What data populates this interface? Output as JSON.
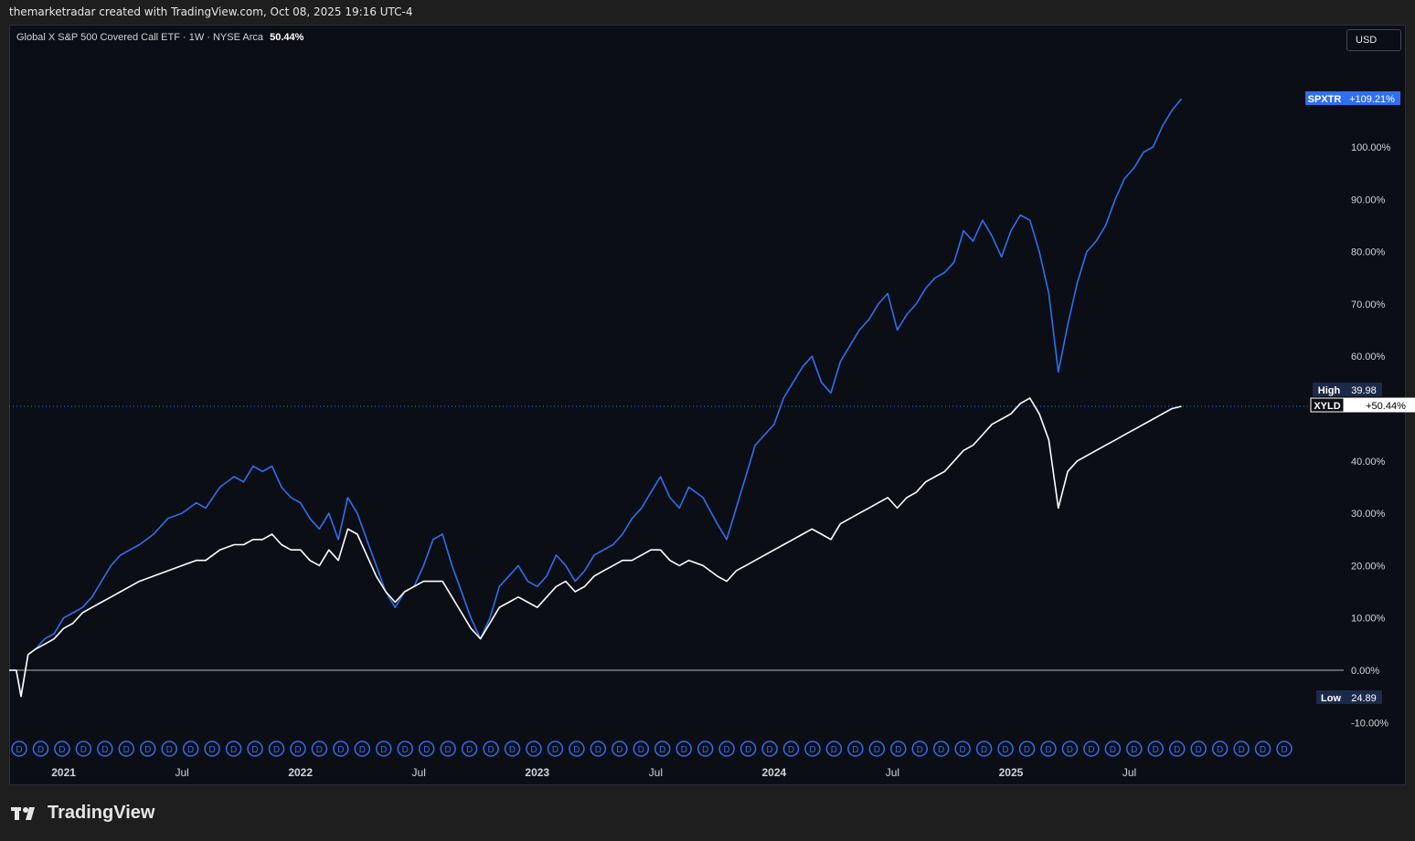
{
  "header": {
    "attribution": "themarketradar created with TradingView.com, Oct 08, 2025 19:16 UTC-4"
  },
  "legend": {
    "symbol_text": "Global X S&P 500 Covered Call ETF · 1W · NYSE Arca",
    "value": "50.44%"
  },
  "currency_button": "USD",
  "brand": {
    "logo_text": "TradingView",
    "icon": "tradingview-logo-icon"
  },
  "colors": {
    "background": "#0c0e15",
    "spxtr": "#2f6ff0",
    "xyld": "#ffffff",
    "axis_text": "#d1d4dc"
  },
  "price_labels": {
    "spxtr": {
      "symbol": "SPXTR",
      "value": "+109.21%"
    },
    "xyld": {
      "symbol": "XYLD",
      "value": "+50.44%"
    },
    "high": {
      "label": "High",
      "value": "39.98"
    },
    "low": {
      "label": "Low",
      "value": "24.89"
    }
  },
  "dividend_marker": "D",
  "chart_data": {
    "type": "line",
    "ylim": [
      -13,
      110
    ],
    "y_ticks": [
      "100.00%",
      "90.00%",
      "80.00%",
      "70.00%",
      "60.00%",
      "40.00%",
      "30.00%",
      "20.00%",
      "10.00%",
      "0.00%",
      "-10.00%"
    ],
    "y_tick_values": [
      100,
      90,
      80,
      70,
      60,
      40,
      30,
      20,
      10,
      0,
      -10
    ],
    "x_ticks": [
      {
        "label": "2021",
        "x": 2021.0
      },
      {
        "label": "Jul",
        "x": 2021.5
      },
      {
        "label": "2022",
        "x": 2022.0
      },
      {
        "label": "Jul",
        "x": 2022.5
      },
      {
        "label": "2023",
        "x": 2023.0
      },
      {
        "label": "Jul",
        "x": 2023.5
      },
      {
        "label": "2024",
        "x": 2024.0
      },
      {
        "label": "Jul",
        "x": 2024.5
      },
      {
        "label": "2025",
        "x": 2025.0
      },
      {
        "label": "Jul",
        "x": 2025.5
      }
    ],
    "xlim": [
      2020.77,
      2026.05
    ],
    "crosshair_y": 50.44,
    "series": [
      {
        "name": "SPXTR",
        "points": [
          [
            2020.77,
            0
          ],
          [
            2020.8,
            0
          ],
          [
            2020.82,
            -5
          ],
          [
            2020.85,
            3
          ],
          [
            2020.88,
            4
          ],
          [
            2020.92,
            6
          ],
          [
            2020.96,
            7
          ],
          [
            2021.0,
            10
          ],
          [
            2021.04,
            11
          ],
          [
            2021.08,
            12
          ],
          [
            2021.12,
            14
          ],
          [
            2021.16,
            17
          ],
          [
            2021.2,
            20
          ],
          [
            2021.24,
            22
          ],
          [
            2021.28,
            23
          ],
          [
            2021.32,
            24
          ],
          [
            2021.38,
            26
          ],
          [
            2021.44,
            29
          ],
          [
            2021.5,
            30
          ],
          [
            2021.56,
            32
          ],
          [
            2021.6,
            31
          ],
          [
            2021.66,
            35
          ],
          [
            2021.72,
            37
          ],
          [
            2021.76,
            36
          ],
          [
            2021.8,
            39
          ],
          [
            2021.84,
            38
          ],
          [
            2021.88,
            39
          ],
          [
            2021.92,
            35
          ],
          [
            2021.96,
            33
          ],
          [
            2022.0,
            32
          ],
          [
            2022.04,
            29
          ],
          [
            2022.08,
            27
          ],
          [
            2022.12,
            30
          ],
          [
            2022.16,
            25
          ],
          [
            2022.2,
            33
          ],
          [
            2022.24,
            30
          ],
          [
            2022.28,
            25
          ],
          [
            2022.32,
            20
          ],
          [
            2022.36,
            15
          ],
          [
            2022.4,
            12
          ],
          [
            2022.44,
            15
          ],
          [
            2022.48,
            16
          ],
          [
            2022.52,
            20
          ],
          [
            2022.56,
            25
          ],
          [
            2022.6,
            26
          ],
          [
            2022.64,
            20
          ],
          [
            2022.68,
            15
          ],
          [
            2022.72,
            10
          ],
          [
            2022.76,
            6
          ],
          [
            2022.8,
            10
          ],
          [
            2022.84,
            16
          ],
          [
            2022.88,
            18
          ],
          [
            2022.92,
            20
          ],
          [
            2022.96,
            17
          ],
          [
            2023.0,
            16
          ],
          [
            2023.04,
            18
          ],
          [
            2023.08,
            22
          ],
          [
            2023.12,
            20
          ],
          [
            2023.16,
            17
          ],
          [
            2023.2,
            19
          ],
          [
            2023.24,
            22
          ],
          [
            2023.28,
            23
          ],
          [
            2023.32,
            24
          ],
          [
            2023.36,
            26
          ],
          [
            2023.4,
            29
          ],
          [
            2023.44,
            31
          ],
          [
            2023.48,
            34
          ],
          [
            2023.52,
            37
          ],
          [
            2023.56,
            33
          ],
          [
            2023.6,
            31
          ],
          [
            2023.64,
            35
          ],
          [
            2023.7,
            33
          ],
          [
            2023.76,
            28
          ],
          [
            2023.8,
            25
          ],
          [
            2023.84,
            31
          ],
          [
            2023.88,
            37
          ],
          [
            2023.92,
            43
          ],
          [
            2023.96,
            45
          ],
          [
            2024.0,
            47
          ],
          [
            2024.04,
            52
          ],
          [
            2024.08,
            55
          ],
          [
            2024.12,
            58
          ],
          [
            2024.16,
            60
          ],
          [
            2024.2,
            55
          ],
          [
            2024.24,
            53
          ],
          [
            2024.28,
            59
          ],
          [
            2024.32,
            62
          ],
          [
            2024.36,
            65
          ],
          [
            2024.4,
            67
          ],
          [
            2024.44,
            70
          ],
          [
            2024.48,
            72
          ],
          [
            2024.52,
            65
          ],
          [
            2024.56,
            68
          ],
          [
            2024.6,
            70
          ],
          [
            2024.64,
            73
          ],
          [
            2024.68,
            75
          ],
          [
            2024.72,
            76
          ],
          [
            2024.76,
            78
          ],
          [
            2024.8,
            84
          ],
          [
            2024.84,
            82
          ],
          [
            2024.88,
            86
          ],
          [
            2024.92,
            83
          ],
          [
            2024.96,
            79
          ],
          [
            2025.0,
            84
          ],
          [
            2025.04,
            87
          ],
          [
            2025.08,
            86
          ],
          [
            2025.12,
            80
          ],
          [
            2025.16,
            72
          ],
          [
            2025.2,
            57
          ],
          [
            2025.24,
            66
          ],
          [
            2025.28,
            74
          ],
          [
            2025.32,
            80
          ],
          [
            2025.36,
            82
          ],
          [
            2025.4,
            85
          ],
          [
            2025.44,
            90
          ],
          [
            2025.48,
            94
          ],
          [
            2025.52,
            96
          ],
          [
            2025.56,
            99
          ],
          [
            2025.6,
            100
          ],
          [
            2025.64,
            104
          ],
          [
            2025.68,
            107
          ],
          [
            2025.72,
            109.21
          ]
        ]
      },
      {
        "name": "XYLD",
        "points": [
          [
            2020.77,
            0
          ],
          [
            2020.8,
            0
          ],
          [
            2020.82,
            -5
          ],
          [
            2020.85,
            3
          ],
          [
            2020.88,
            4
          ],
          [
            2020.92,
            5
          ],
          [
            2020.96,
            6
          ],
          [
            2021.0,
            8
          ],
          [
            2021.04,
            9
          ],
          [
            2021.08,
            11
          ],
          [
            2021.12,
            12
          ],
          [
            2021.16,
            13
          ],
          [
            2021.2,
            14
          ],
          [
            2021.24,
            15
          ],
          [
            2021.28,
            16
          ],
          [
            2021.32,
            17
          ],
          [
            2021.38,
            18
          ],
          [
            2021.44,
            19
          ],
          [
            2021.5,
            20
          ],
          [
            2021.56,
            21
          ],
          [
            2021.6,
            21
          ],
          [
            2021.66,
            23
          ],
          [
            2021.72,
            24
          ],
          [
            2021.76,
            24
          ],
          [
            2021.8,
            25
          ],
          [
            2021.84,
            25
          ],
          [
            2021.88,
            26
          ],
          [
            2021.92,
            24
          ],
          [
            2021.96,
            23
          ],
          [
            2022.0,
            23
          ],
          [
            2022.04,
            21
          ],
          [
            2022.08,
            20
          ],
          [
            2022.12,
            23
          ],
          [
            2022.16,
            21
          ],
          [
            2022.2,
            27
          ],
          [
            2022.24,
            26
          ],
          [
            2022.28,
            22
          ],
          [
            2022.32,
            18
          ],
          [
            2022.36,
            15
          ],
          [
            2022.4,
            13
          ],
          [
            2022.44,
            15
          ],
          [
            2022.48,
            16
          ],
          [
            2022.52,
            17
          ],
          [
            2022.56,
            17
          ],
          [
            2022.6,
            17
          ],
          [
            2022.64,
            14
          ],
          [
            2022.68,
            11
          ],
          [
            2022.72,
            8
          ],
          [
            2022.76,
            6
          ],
          [
            2022.8,
            9
          ],
          [
            2022.84,
            12
          ],
          [
            2022.88,
            13
          ],
          [
            2022.92,
            14
          ],
          [
            2022.96,
            13
          ],
          [
            2023.0,
            12
          ],
          [
            2023.04,
            14
          ],
          [
            2023.08,
            16
          ],
          [
            2023.12,
            17
          ],
          [
            2023.16,
            15
          ],
          [
            2023.2,
            16
          ],
          [
            2023.24,
            18
          ],
          [
            2023.28,
            19
          ],
          [
            2023.32,
            20
          ],
          [
            2023.36,
            21
          ],
          [
            2023.4,
            21
          ],
          [
            2023.44,
            22
          ],
          [
            2023.48,
            23
          ],
          [
            2023.52,
            23
          ],
          [
            2023.56,
            21
          ],
          [
            2023.6,
            20
          ],
          [
            2023.64,
            21
          ],
          [
            2023.7,
            20
          ],
          [
            2023.76,
            18
          ],
          [
            2023.8,
            17
          ],
          [
            2023.84,
            19
          ],
          [
            2023.88,
            20
          ],
          [
            2023.92,
            21
          ],
          [
            2023.96,
            22
          ],
          [
            2024.0,
            23
          ],
          [
            2024.04,
            24
          ],
          [
            2024.08,
            25
          ],
          [
            2024.12,
            26
          ],
          [
            2024.16,
            27
          ],
          [
            2024.2,
            26
          ],
          [
            2024.24,
            25
          ],
          [
            2024.28,
            28
          ],
          [
            2024.32,
            29
          ],
          [
            2024.36,
            30
          ],
          [
            2024.4,
            31
          ],
          [
            2024.44,
            32
          ],
          [
            2024.48,
            33
          ],
          [
            2024.52,
            31
          ],
          [
            2024.56,
            33
          ],
          [
            2024.6,
            34
          ],
          [
            2024.64,
            36
          ],
          [
            2024.68,
            37
          ],
          [
            2024.72,
            38
          ],
          [
            2024.76,
            40
          ],
          [
            2024.8,
            42
          ],
          [
            2024.84,
            43
          ],
          [
            2024.88,
            45
          ],
          [
            2024.92,
            47
          ],
          [
            2024.96,
            48
          ],
          [
            2025.0,
            49
          ],
          [
            2025.04,
            51
          ],
          [
            2025.08,
            52
          ],
          [
            2025.12,
            49
          ],
          [
            2025.16,
            44
          ],
          [
            2025.2,
            31
          ],
          [
            2025.24,
            38
          ],
          [
            2025.28,
            40
          ],
          [
            2025.32,
            41
          ],
          [
            2025.36,
            42
          ],
          [
            2025.4,
            43
          ],
          [
            2025.44,
            44
          ],
          [
            2025.48,
            45
          ],
          [
            2025.52,
            46
          ],
          [
            2025.56,
            47
          ],
          [
            2025.6,
            48
          ],
          [
            2025.64,
            49
          ],
          [
            2025.68,
            50
          ],
          [
            2025.72,
            50.44
          ]
        ]
      }
    ]
  }
}
